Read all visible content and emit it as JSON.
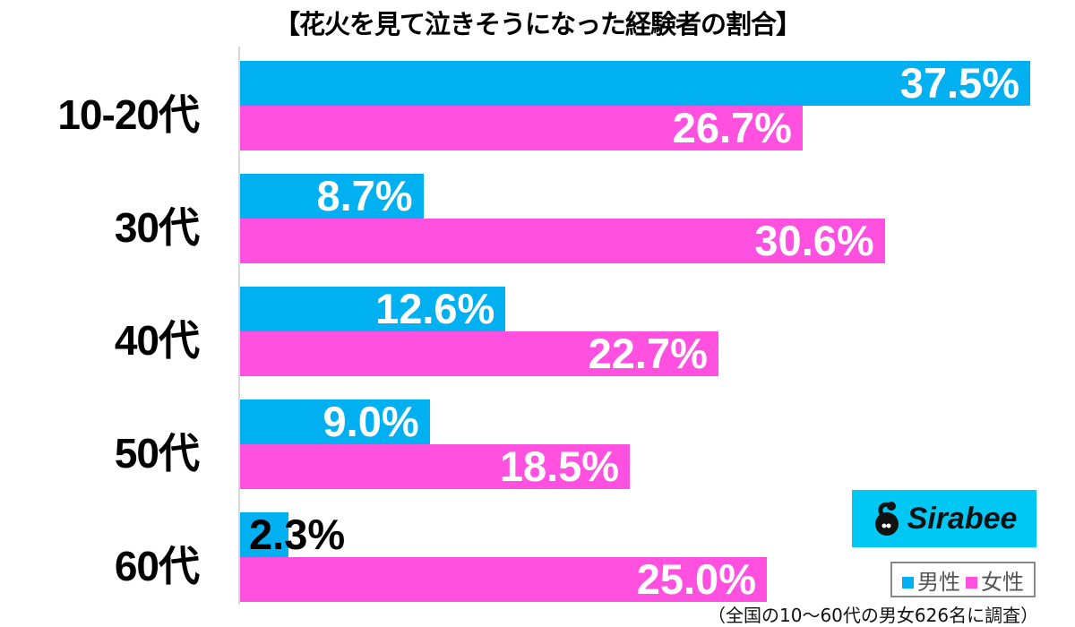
{
  "chart_data": {
    "type": "bar",
    "orientation": "horizontal",
    "title": "【花火を見て泣きそうになった経験者の割合】",
    "categories": [
      "10-20代",
      "30代",
      "40代",
      "50代",
      "60代"
    ],
    "series": [
      {
        "name": "男性",
        "color": "#00b0f0",
        "values": [
          37.5,
          8.7,
          12.6,
          9.0,
          2.3
        ]
      },
      {
        "name": "女性",
        "color": "#ff50e0",
        "values": [
          26.7,
          30.6,
          22.7,
          18.5,
          25.0
        ]
      }
    ],
    "value_labels": {
      "male": [
        "37.5%",
        "8.7%",
        "12.6%",
        "9.0%",
        "2.3%"
      ],
      "female": [
        "26.7%",
        "30.6%",
        "22.7%",
        "18.5%",
        "25.0%"
      ]
    },
    "xlabel": "",
    "ylabel": "",
    "xlim": [
      0,
      40
    ],
    "grid": false,
    "legend_position": "bottom-right",
    "annotations": [
      "（全国の10〜60代の男女626名に調査）"
    ]
  },
  "legend": {
    "male": "男性",
    "female": "女性"
  },
  "logo": {
    "text": "Sirabee"
  },
  "note": "（全国の10〜60代の男女626名に調査）"
}
